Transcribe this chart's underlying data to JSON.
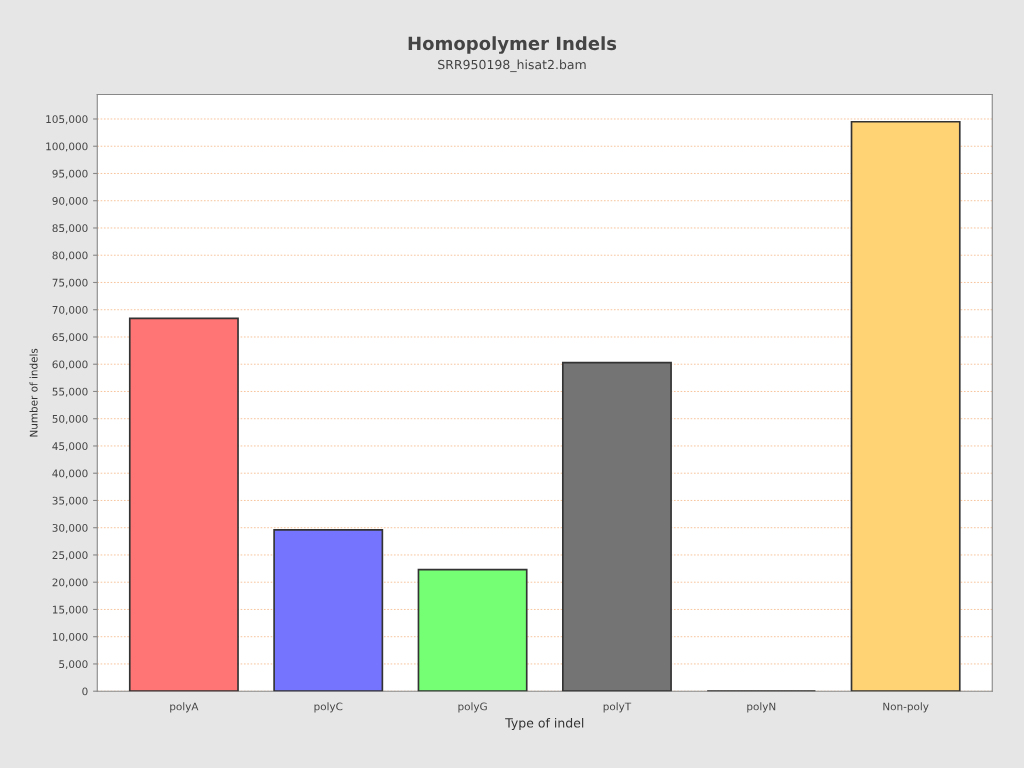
{
  "chart_data": {
    "type": "bar",
    "title": "Homopolymer Indels",
    "subtitle": "SRR950198_hisat2.bam",
    "xlabel": "Type of indel",
    "ylabel": "Number of indels",
    "categories": [
      "polyA",
      "polyC",
      "polyG",
      "polyT",
      "polyN",
      "Non-poly"
    ],
    "values": [
      68400,
      29600,
      22300,
      60300,
      0,
      104500
    ],
    "colors": [
      "#ff7474",
      "#7474ff",
      "#74ff74",
      "#747474",
      "#333333",
      "#ffd274"
    ],
    "ylim": [
      0,
      109500
    ],
    "yticks": [
      {
        "value": 0,
        "label": "0"
      },
      {
        "value": 5000,
        "label": "5,000"
      },
      {
        "value": 10000,
        "label": "10,000"
      },
      {
        "value": 15000,
        "label": "15,000"
      },
      {
        "value": 20000,
        "label": "20,000"
      },
      {
        "value": 25000,
        "label": "25,000"
      },
      {
        "value": 30000,
        "label": "30,000"
      },
      {
        "value": 35000,
        "label": "35,000"
      },
      {
        "value": 40000,
        "label": "40,000"
      },
      {
        "value": 45000,
        "label": "45,000"
      },
      {
        "value": 50000,
        "label": "50,000"
      },
      {
        "value": 55000,
        "label": "55,000"
      },
      {
        "value": 60000,
        "label": "60,000"
      },
      {
        "value": 65000,
        "label": "65,000"
      },
      {
        "value": 70000,
        "label": "70,000"
      },
      {
        "value": 75000,
        "label": "75,000"
      },
      {
        "value": 80000,
        "label": "80,000"
      },
      {
        "value": 85000,
        "label": "85,000"
      },
      {
        "value": 90000,
        "label": "90,000"
      },
      {
        "value": 95000,
        "label": "95,000"
      },
      {
        "value": 100000,
        "label": "100,000"
      },
      {
        "value": 105000,
        "label": "105,000"
      }
    ],
    "grid": "y",
    "legend": false
  }
}
